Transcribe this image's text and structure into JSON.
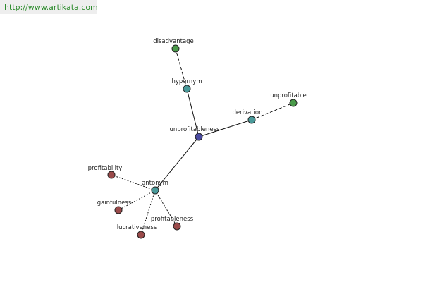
{
  "watermark": "http://www.artikata.com",
  "nodes": [
    {
      "label": "unprofitableness"
    },
    {
      "label": "hypernym"
    },
    {
      "label": "disadvantage"
    },
    {
      "label": "derivation"
    },
    {
      "label": "unprofitable"
    },
    {
      "label": "antonym"
    },
    {
      "label": "profitability"
    },
    {
      "label": "gainfulness"
    },
    {
      "label": "lucrativeness"
    },
    {
      "label": "profitableness"
    }
  ]
}
